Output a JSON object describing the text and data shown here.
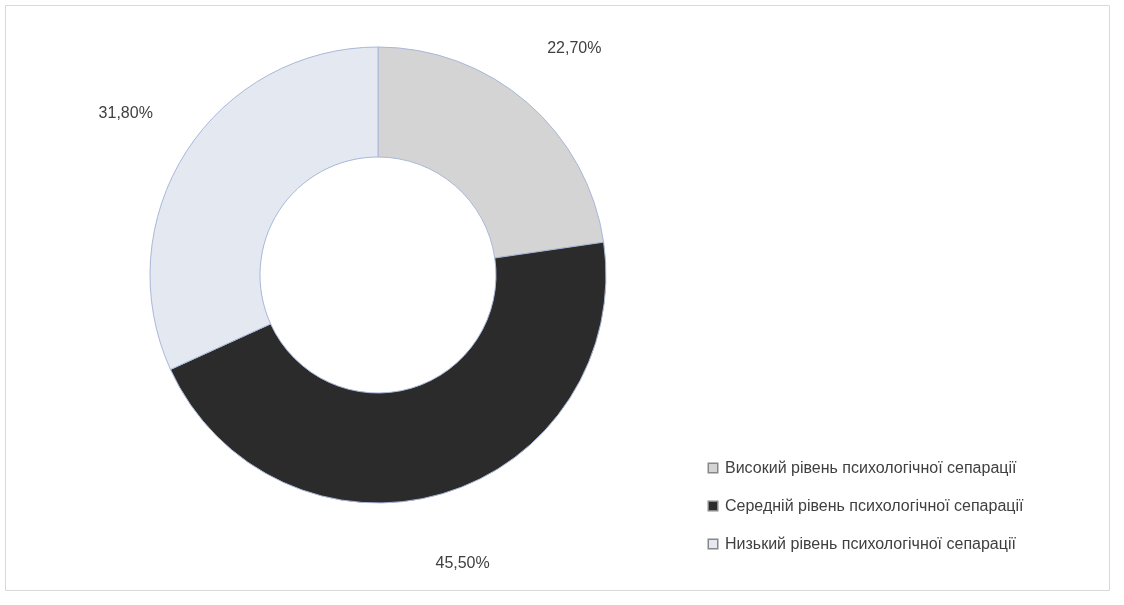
{
  "chart_data": {
    "type": "donut",
    "categories": [
      "Високий рівень психологічної сепарації",
      "Середній рівень психологічної сепарації",
      "Низький рівень  психологічної сепарації"
    ],
    "values": [
      22.7,
      45.5,
      31.8
    ],
    "colors": [
      "#d4d4d4",
      "#2b2b2b",
      "#e3e8f1"
    ],
    "value_labels": [
      "22,70%",
      "45,50%",
      "31,80%"
    ],
    "legend": "bottom right"
  }
}
